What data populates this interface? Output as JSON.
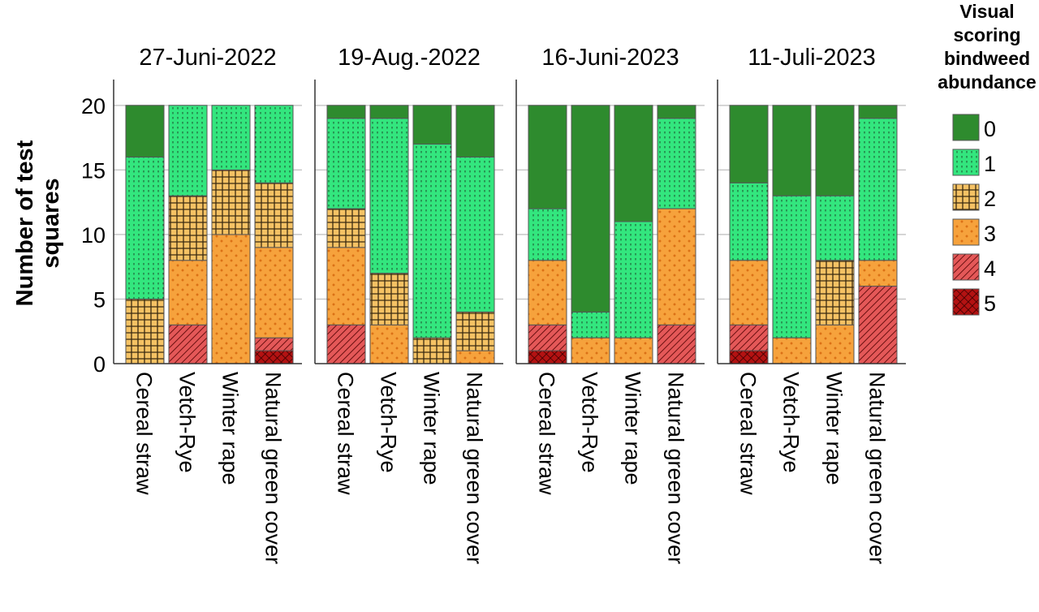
{
  "chart_data": {
    "type": "bar",
    "stacked": true,
    "ylabel": "Number of test squares",
    "ylim": [
      0,
      22
    ],
    "yticks": [
      0,
      5,
      10,
      15,
      20
    ],
    "grid": true,
    "legend": {
      "title": "Visual scoring bindweed abundance",
      "title_lines": [
        "Visual",
        "scoring",
        "bindweed",
        "abundance"
      ],
      "placement": "right",
      "levels": [
        "0",
        "1",
        "2",
        "3",
        "4",
        "5"
      ],
      "colors": [
        "#2e8b2e",
        "#33e67e",
        "#f5c264",
        "#f6a23c",
        "#e45858",
        "#b31212"
      ]
    },
    "categories": [
      "Cereal straw",
      "Vetch-Rye",
      "Winter rape",
      "Natural green cover"
    ],
    "panels": [
      {
        "title": "27-Juni-2022",
        "bars": [
          {
            "category": "Cereal straw",
            "counts": {
              "0": 4,
              "1": 11,
              "2": 5,
              "3": 0,
              "4": 0,
              "5": 0
            }
          },
          {
            "category": "Vetch-Rye",
            "counts": {
              "0": 0,
              "1": 7,
              "2": 5,
              "3": 5,
              "4": 3,
              "5": 0
            }
          },
          {
            "category": "Winter rape",
            "counts": {
              "0": 0,
              "1": 5,
              "2": 5,
              "3": 10,
              "4": 0,
              "5": 0
            }
          },
          {
            "category": "Natural green cover",
            "counts": {
              "0": 0,
              "1": 6,
              "2": 5,
              "3": 7,
              "4": 1,
              "5": 1
            }
          }
        ]
      },
      {
        "title": "19-Aug.-2022",
        "bars": [
          {
            "category": "Cereal straw",
            "counts": {
              "0": 1,
              "1": 7,
              "2": 3,
              "3": 6,
              "4": 3,
              "5": 0
            }
          },
          {
            "category": "Vetch-Rye",
            "counts": {
              "0": 1,
              "1": 12,
              "2": 4,
              "3": 3,
              "4": 0,
              "5": 0
            }
          },
          {
            "category": "Winter rape",
            "counts": {
              "0": 3,
              "1": 15,
              "2": 2,
              "3": 0,
              "4": 0,
              "5": 0
            }
          },
          {
            "category": "Natural green cover",
            "counts": {
              "0": 4,
              "1": 12,
              "2": 3,
              "3": 1,
              "4": 0,
              "5": 0
            }
          }
        ]
      },
      {
        "title": "16-Juni-2023",
        "bars": [
          {
            "category": "Cereal straw",
            "counts": {
              "0": 8,
              "1": 4,
              "2": 0,
              "3": 5,
              "4": 2,
              "5": 1
            }
          },
          {
            "category": "Vetch-Rye",
            "counts": {
              "0": 16,
              "1": 2,
              "2": 0,
              "3": 2,
              "4": 0,
              "5": 0
            }
          },
          {
            "category": "Winter rape",
            "counts": {
              "0": 9,
              "1": 9,
              "2": 0,
              "3": 2,
              "4": 0,
              "5": 0
            }
          },
          {
            "category": "Natural green cover",
            "counts": {
              "0": 1,
              "1": 7,
              "2": 0,
              "3": 9,
              "4": 3,
              "5": 0
            }
          }
        ]
      },
      {
        "title": "11-Juli-2023",
        "bars": [
          {
            "category": "Cereal straw",
            "counts": {
              "0": 6,
              "1": 6,
              "2": 0,
              "3": 5,
              "4": 2,
              "5": 1
            }
          },
          {
            "category": "Vetch-Rye",
            "counts": {
              "0": 7,
              "1": 11,
              "2": 0,
              "3": 2,
              "4": 0,
              "5": 0
            }
          },
          {
            "category": "Winter rape",
            "counts": {
              "0": 7,
              "1": 5,
              "2": 5,
              "3": 3,
              "4": 0,
              "5": 0
            }
          },
          {
            "category": "Natural green cover",
            "counts": {
              "0": 1,
              "1": 11,
              "2": 0,
              "3": 2,
              "4": 6,
              "5": 0
            }
          }
        ]
      }
    ]
  }
}
